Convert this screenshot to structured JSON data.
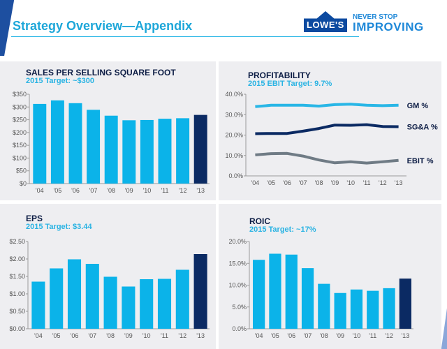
{
  "header": {
    "title": "Strategy Overview—Appendix",
    "logo_text": "LOWE'S",
    "tagline_line1": "NEVER STOP",
    "tagline_line2": "IMPROVING"
  },
  "colors": {
    "bar": "#0bb3e9",
    "bar_highlight": "#0b2a63",
    "title": "#1ea7d9",
    "subtitle": "#29b3e3",
    "panel_bg": "#eeeef1"
  },
  "panels": [
    {
      "title": "SALES PER SELLING SQUARE FOOT",
      "subtitle": "2015 Target: ~$300"
    },
    {
      "title": "PROFITABILITY",
      "subtitle": "2015 EBIT Target: 9.7%"
    },
    {
      "title": "EPS",
      "subtitle": "2015 Target: $3.44"
    },
    {
      "title": "ROIC",
      "subtitle": "2015 Target: ~17%"
    }
  ],
  "chart_data": [
    {
      "type": "bar",
      "title": "SALES PER SELLING SQUARE FOOT",
      "categories": [
        "'04",
        "'05",
        "'06",
        "'07",
        "'08",
        "'09",
        "'10",
        "'11",
        "'12",
        "'13"
      ],
      "values": [
        312,
        326,
        315,
        289,
        266,
        248,
        249,
        254,
        256,
        269
      ],
      "highlight_last": true,
      "ylim": [
        0,
        350
      ],
      "yticks": [
        "$0",
        "$50",
        "$100",
        "$150",
        "$200",
        "$250",
        "$300",
        "$350"
      ],
      "grid": false
    },
    {
      "type": "line",
      "title": "PROFITABILITY",
      "categories": [
        "'04",
        "'05",
        "'06",
        "'07",
        "'08",
        "'09",
        "'10",
        "'11",
        "'12",
        "'13"
      ],
      "series": [
        {
          "name": "GM %",
          "color": "#29b6e6",
          "values": [
            33.9,
            34.6,
            34.6,
            34.6,
            34.2,
            34.9,
            35.1,
            34.6,
            34.4,
            34.6
          ]
        },
        {
          "name": "SG&A %",
          "color": "#0b2a63",
          "values": [
            20.7,
            20.8,
            20.8,
            21.9,
            23.2,
            24.9,
            24.8,
            25.1,
            24.2,
            24.1
          ]
        },
        {
          "name": "EBIT %",
          "color": "#6f7b85",
          "values": [
            10.3,
            10.9,
            11.0,
            9.7,
            7.8,
            6.4,
            6.9,
            6.3,
            6.9,
            7.6
          ]
        }
      ],
      "ylim": [
        0,
        40
      ],
      "yticks": [
        "0.0%",
        "10.0%",
        "20.0%",
        "30.0%",
        "40.0%"
      ],
      "legend": "right-end labels",
      "grid": false
    },
    {
      "type": "bar",
      "title": "EPS",
      "categories": [
        "'04",
        "'05",
        "'06",
        "'07",
        "'08",
        "'09",
        "'10",
        "'11",
        "'12",
        "'13"
      ],
      "values": [
        1.35,
        1.73,
        1.99,
        1.86,
        1.49,
        1.21,
        1.42,
        1.43,
        1.69,
        2.14
      ],
      "highlight_last": true,
      "ylim": [
        0,
        2.5
      ],
      "yticks": [
        "$0.00",
        "$0.50",
        "$1.00",
        "$1.50",
        "$2.00",
        "$2.50"
      ],
      "grid": false
    },
    {
      "type": "bar",
      "title": "ROIC",
      "categories": [
        "'04",
        "'05",
        "'06",
        "'07",
        "'08",
        "'09",
        "'10",
        "'11",
        "'12",
        "'13"
      ],
      "values": [
        15.8,
        17.2,
        17.0,
        13.9,
        10.3,
        8.2,
        9.0,
        8.7,
        9.3,
        11.5
      ],
      "highlight_last": true,
      "ylim": [
        0,
        20
      ],
      "yticks": [
        "0.0%",
        "5.0%",
        "10.0%",
        "15.0%",
        "20.0%"
      ],
      "grid": false
    }
  ]
}
